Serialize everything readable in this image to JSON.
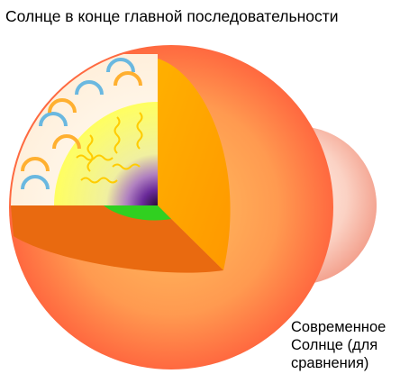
{
  "title": "Солнце в конце главной последовательности",
  "comparison_label": {
    "lines": [
      "Современное",
      "Солнце (для",
      "сравнения)"
    ]
  }
}
